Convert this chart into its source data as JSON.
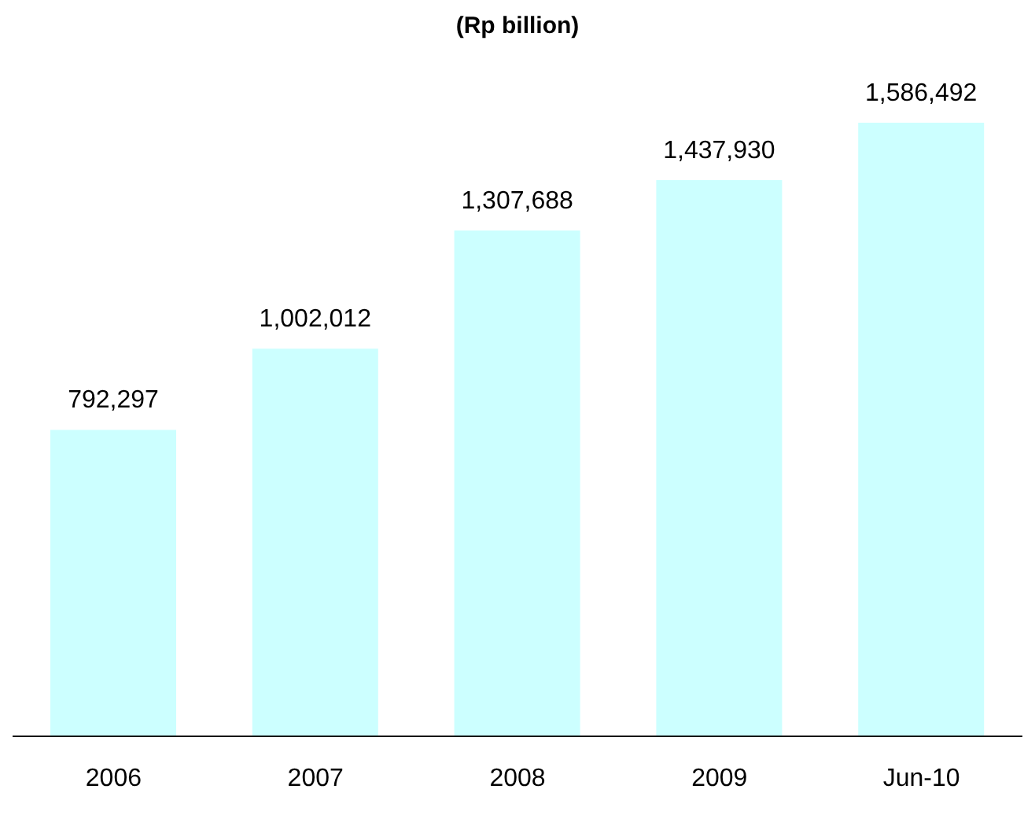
{
  "chart_data": {
    "type": "bar",
    "title": "(Rp billion)",
    "categories": [
      "2006",
      "2007",
      "2008",
      "2009",
      "Jun-10"
    ],
    "values": [
      792297,
      1002012,
      1307688,
      1437930,
      1586492
    ],
    "value_labels": [
      "792,297",
      "1,002,012",
      "1,307,688",
      "1,437,930",
      "1,586,492"
    ],
    "color": "#ccffff"
  }
}
